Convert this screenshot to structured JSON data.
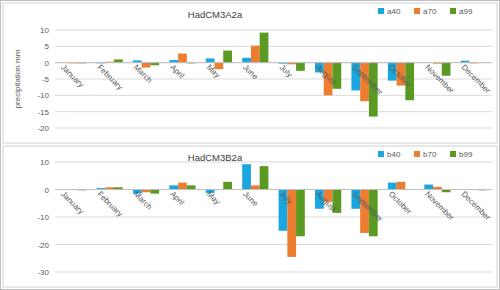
{
  "chart_data": [
    {
      "type": "bar",
      "title": "HadCM3A2a",
      "ylabel": "precipitation mm",
      "categories": [
        "January",
        "February",
        "March",
        "April",
        "May",
        "June",
        "July",
        "August",
        "September",
        "October",
        "November",
        "December"
      ],
      "series": [
        {
          "name": "a40",
          "color": "#1aa7e0",
          "values": [
            0,
            -0.2,
            0.7,
            0.8,
            1.3,
            1.5,
            -0.3,
            -3,
            -8.5,
            -5.5,
            0,
            0.6
          ]
        },
        {
          "name": "a70",
          "color": "#ed7d31",
          "values": [
            -0.2,
            0.3,
            -1.5,
            2.8,
            -2,
            5.2,
            -0.5,
            -10,
            -11.8,
            -7,
            -0.3,
            -0.2
          ]
        },
        {
          "name": "a99",
          "color": "#5a9a22",
          "values": [
            -0.2,
            1,
            -0.8,
            -0.2,
            3.7,
            9.2,
            -2.5,
            -8,
            -16.5,
            -11.5,
            -4,
            0
          ]
        }
      ],
      "ylim": [
        -20,
        10
      ],
      "yticks": [
        -20,
        -15,
        -10,
        -5,
        0,
        5,
        10
      ],
      "grid": true,
      "legend": "top-right"
    },
    {
      "type": "bar",
      "title": "HadCM3B2a",
      "categories": [
        "January",
        "February",
        "March",
        "April",
        "May",
        "June",
        "July",
        "August",
        "September",
        "October",
        "November",
        "December"
      ],
      "series": [
        {
          "name": "b40",
          "color": "#1aa7e0",
          "values": [
            0,
            0.5,
            -1.5,
            1.5,
            -1.3,
            9.2,
            -15,
            -7,
            -7,
            2.5,
            1.8,
            -0.2
          ]
        },
        {
          "name": "b70",
          "color": "#ed7d31",
          "values": [
            -0.2,
            0.8,
            -1,
            2.5,
            0,
            1.5,
            -24.5,
            -4.5,
            -15.8,
            2.8,
            1,
            -0.2
          ]
        },
        {
          "name": "b99",
          "color": "#5a9a22",
          "values": [
            -0.3,
            0.8,
            -1.5,
            1.5,
            2.8,
            8.5,
            -17,
            -8.5,
            -17,
            0,
            -1,
            -0.3
          ]
        }
      ],
      "ylim": [
        -30,
        10
      ],
      "yticks": [
        -30,
        -20,
        -10,
        0,
        10
      ],
      "grid": true,
      "legend": "top-right"
    }
  ]
}
